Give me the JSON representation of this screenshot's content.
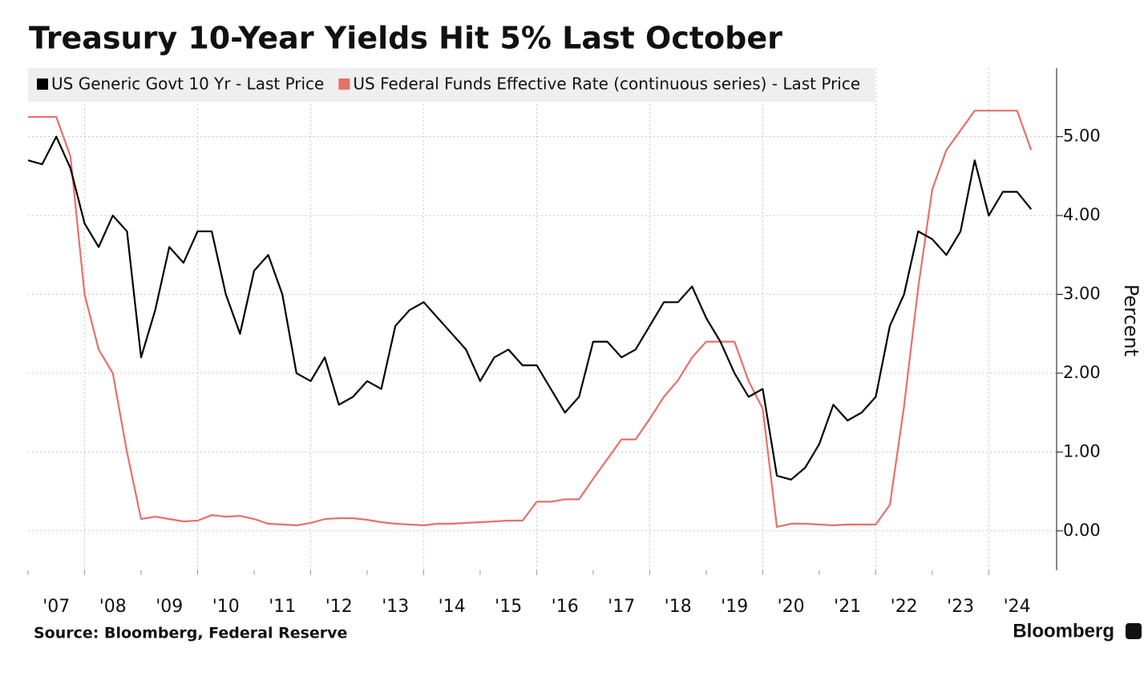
{
  "chart_data": {
    "type": "line",
    "title": "Treasury 10-Year Yields Hit 5% Last October",
    "y_label": "Percent",
    "source": "Source: Bloomberg, Federal Reserve",
    "brand": "Bloomberg",
    "x": [
      2007,
      2007.25,
      2007.5,
      2007.75,
      2008,
      2008.25,
      2008.5,
      2008.75,
      2009,
      2009.25,
      2009.5,
      2009.75,
      2010,
      2010.25,
      2010.5,
      2010.75,
      2011,
      2011.25,
      2011.5,
      2011.75,
      2012,
      2012.25,
      2012.5,
      2012.75,
      2013,
      2013.25,
      2013.5,
      2013.75,
      2014,
      2014.25,
      2014.5,
      2014.75,
      2015,
      2015.25,
      2015.5,
      2015.75,
      2016,
      2016.25,
      2016.5,
      2016.75,
      2017,
      2017.25,
      2017.5,
      2017.75,
      2018,
      2018.25,
      2018.5,
      2018.75,
      2019,
      2019.25,
      2019.5,
      2019.75,
      2020,
      2020.25,
      2020.5,
      2020.75,
      2021,
      2021.25,
      2021.5,
      2021.75,
      2022,
      2022.25,
      2022.5,
      2022.75,
      2023,
      2023.25,
      2023.5,
      2023.75,
      2024,
      2024.25,
      2024.5,
      2024.75
    ],
    "series": [
      {
        "name": "US Generic Govt 10 Yr - Last Price",
        "color": "#000000",
        "values": [
          4.7,
          4.65,
          5.0,
          4.6,
          3.9,
          3.6,
          4.0,
          3.8,
          2.2,
          2.8,
          3.6,
          3.4,
          3.8,
          3.8,
          3.0,
          2.5,
          3.3,
          3.5,
          3.0,
          2.0,
          1.9,
          2.2,
          1.6,
          1.7,
          1.9,
          1.8,
          2.6,
          2.8,
          2.9,
          2.7,
          2.5,
          2.3,
          1.9,
          2.2,
          2.3,
          2.1,
          2.1,
          1.8,
          1.5,
          1.7,
          2.4,
          2.4,
          2.2,
          2.3,
          2.6,
          2.9,
          2.9,
          3.1,
          2.7,
          2.4,
          2.0,
          1.7,
          1.8,
          0.7,
          0.65,
          0.8,
          1.1,
          1.6,
          1.4,
          1.5,
          1.7,
          2.6,
          3.0,
          3.8,
          3.7,
          3.5,
          3.8,
          4.7,
          4.0,
          4.3,
          4.3,
          4.08
        ]
      },
      {
        "name": "US Federal Funds Effective Rate (continuous series) - Last Price",
        "color": "#e8706b",
        "values": [
          5.25,
          5.25,
          5.25,
          4.75,
          3.0,
          2.3,
          2.0,
          1.0,
          0.15,
          0.18,
          0.15,
          0.12,
          0.13,
          0.2,
          0.18,
          0.19,
          0.15,
          0.09,
          0.08,
          0.07,
          0.1,
          0.15,
          0.16,
          0.16,
          0.14,
          0.11,
          0.09,
          0.08,
          0.07,
          0.09,
          0.09,
          0.1,
          0.11,
          0.12,
          0.13,
          0.13,
          0.37,
          0.37,
          0.4,
          0.4,
          0.66,
          0.91,
          1.16,
          1.16,
          1.42,
          1.7,
          1.91,
          2.2,
          2.4,
          2.4,
          2.4,
          1.9,
          1.55,
          0.05,
          0.09,
          0.09,
          0.08,
          0.07,
          0.08,
          0.08,
          0.08,
          0.33,
          1.58,
          3.08,
          4.33,
          4.83,
          5.08,
          5.33,
          5.33,
          5.33,
          5.33,
          4.83
        ]
      }
    ],
    "xlim": [
      2007,
      2025.2
    ],
    "xticks": [
      {
        "value": 2007,
        "label": "'07"
      },
      {
        "value": 2008,
        "label": "'08"
      },
      {
        "value": 2009,
        "label": "'09"
      },
      {
        "value": 2010,
        "label": "'10"
      },
      {
        "value": 2011,
        "label": "'11"
      },
      {
        "value": 2012,
        "label": "'12"
      },
      {
        "value": 2013,
        "label": "'13"
      },
      {
        "value": 2014,
        "label": "'14"
      },
      {
        "value": 2015,
        "label": "'15"
      },
      {
        "value": 2016,
        "label": "'16"
      },
      {
        "value": 2017,
        "label": "'17"
      },
      {
        "value": 2018,
        "label": "'18"
      },
      {
        "value": 2019,
        "label": "'19"
      },
      {
        "value": 2020,
        "label": "'20"
      },
      {
        "value": 2021,
        "label": "'21"
      },
      {
        "value": 2022,
        "label": "'22"
      },
      {
        "value": 2023,
        "label": "'23"
      },
      {
        "value": 2024,
        "label": "'24"
      }
    ],
    "xgrid": [
      2008,
      2010,
      2012,
      2014,
      2016,
      2018,
      2020,
      2022,
      2024
    ],
    "ylim": [
      -0.5,
      5.87
    ],
    "yticks": [
      {
        "value": 0,
        "label": "0.00"
      },
      {
        "value": 1,
        "label": "1.00"
      },
      {
        "value": 2,
        "label": "2.00"
      },
      {
        "value": 3,
        "label": "3.00"
      },
      {
        "value": 4,
        "label": "4.00"
      },
      {
        "value": 5,
        "label": "5.00"
      }
    ],
    "grid": true,
    "legend": "top-left"
  }
}
